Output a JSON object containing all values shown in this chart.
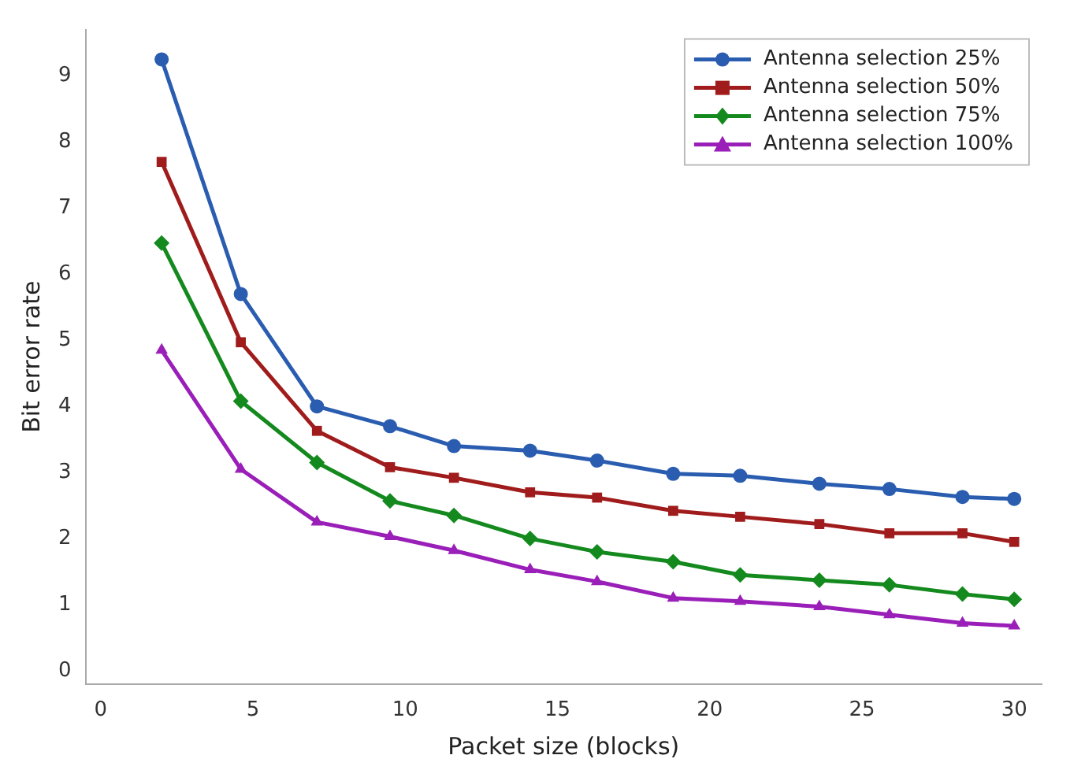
{
  "chart_data": {
    "type": "line",
    "xlabel": "Packet size (blocks)",
    "ylabel": "Bit error rate",
    "x": [
      2.0,
      4.6,
      7.1,
      9.5,
      11.6,
      14.1,
      16.3,
      18.8,
      21.0,
      23.6,
      25.9,
      28.3,
      30.0
    ],
    "series": [
      {
        "name": "Antenna selection 25%",
        "color": "#2a5db0",
        "marker": "circle",
        "values": [
          9.25,
          5.7,
          4.0,
          3.7,
          3.4,
          3.33,
          3.18,
          2.98,
          2.95,
          2.83,
          2.75,
          2.63,
          2.6
        ]
      },
      {
        "name": "Antenna selection 50%",
        "color": "#a01c1c",
        "marker": "square",
        "values": [
          7.7,
          4.97,
          3.63,
          3.08,
          2.92,
          2.7,
          2.62,
          2.42,
          2.33,
          2.22,
          2.08,
          2.08,
          1.95
        ]
      },
      {
        "name": "Antenna selection 75%",
        "color": "#148a1e",
        "marker": "diamond",
        "values": [
          6.47,
          4.08,
          3.15,
          2.57,
          2.35,
          2.0,
          1.8,
          1.65,
          1.45,
          1.37,
          1.3,
          1.16,
          1.08
        ]
      },
      {
        "name": "Antenna selection 100%",
        "color": "#9a1fb8",
        "marker": "triangle",
        "values": [
          4.85,
          3.05,
          2.25,
          2.03,
          1.82,
          1.53,
          1.35,
          1.1,
          1.05,
          0.97,
          0.85,
          0.72,
          0.68
        ]
      }
    ],
    "xlim": [
      -0.5,
      30.9
    ],
    "xticks": [
      0,
      5,
      10,
      15,
      20,
      25,
      30
    ],
    "ylim": [
      -0.2,
      9.7
    ],
    "yticks": [
      0,
      1,
      2,
      3,
      4,
      5,
      6,
      7,
      8,
      9
    ],
    "grid": false,
    "legend": "top right",
    "line_style": "solid"
  }
}
